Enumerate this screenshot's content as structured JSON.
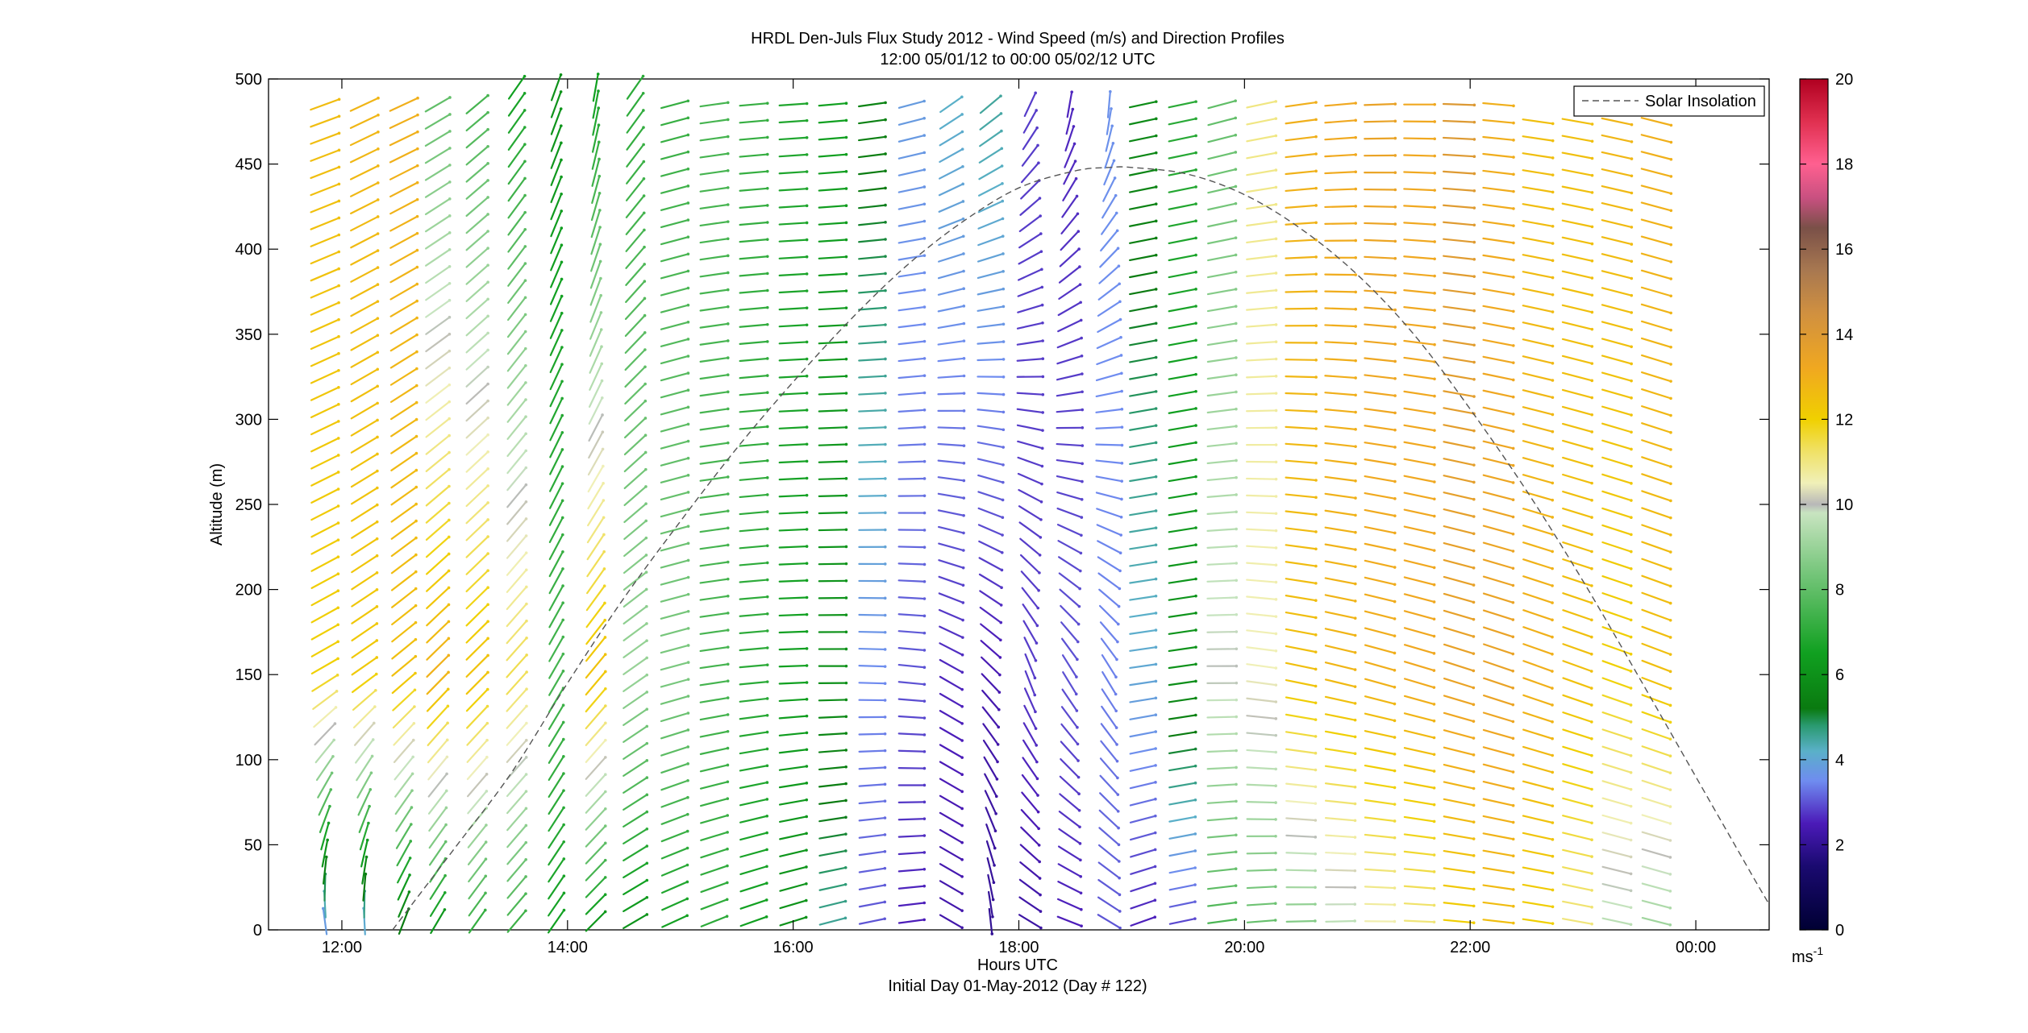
{
  "chart_data": {
    "type": "scatter",
    "title_line1": "HRDL Den-Juls Flux Study 2012 - Wind Speed (m/s) and Direction Profiles",
    "title_line2": "12:00 05/01/12 to 00:00 05/02/12  UTC",
    "xlabel": "Hours UTC",
    "xlabel_sub": "Initial Day 01-May-2012 (Day # 122)",
    "ylabel": "Altitude (m)",
    "xlim": [
      11.35,
      24.65
    ],
    "ylim": [
      0,
      500
    ],
    "x_ticks": [
      12,
      14,
      16,
      18,
      20,
      22,
      24
    ],
    "x_tick_labels": [
      "12:00",
      "14:00",
      "16:00",
      "18:00",
      "20:00",
      "22:00",
      "00:00"
    ],
    "y_ticks": [
      0,
      50,
      100,
      150,
      200,
      250,
      300,
      350,
      400,
      450,
      500
    ],
    "y_tick_labels": [
      "0",
      "50",
      "100",
      "150",
      "200",
      "250",
      "300",
      "350",
      "400",
      "450",
      "500"
    ],
    "grid": false,
    "legend": {
      "label": "Solar Insolation",
      "placement": "top-right",
      "style": "dashed",
      "color": "#555555"
    },
    "colorbar": {
      "min": 0,
      "max": 20,
      "ticks": [
        0,
        2,
        4,
        6,
        8,
        10,
        12,
        14,
        16,
        18,
        20
      ],
      "tick_labels": [
        "0",
        "2",
        "4",
        "6",
        "8",
        "10",
        "12",
        "14",
        "16",
        "18",
        "20"
      ],
      "unit_label": "ms",
      "unit_sup": "-1",
      "stops": [
        [
          0,
          "#000033"
        ],
        [
          1.5,
          "#1a0a70"
        ],
        [
          2.5,
          "#4b1ab8"
        ],
        [
          3.5,
          "#6f8cf0"
        ],
        [
          4.2,
          "#5ab0c8"
        ],
        [
          4.8,
          "#2a9a70"
        ],
        [
          5.2,
          "#0a7a10"
        ],
        [
          6.5,
          "#10a020"
        ],
        [
          8.5,
          "#7cc880"
        ],
        [
          9.8,
          "#c8e4c0"
        ],
        [
          10,
          "#b8b8b8"
        ],
        [
          10.5,
          "#f0f0b8"
        ],
        [
          11.3,
          "#f0e060"
        ],
        [
          12,
          "#f0d000"
        ],
        [
          13.2,
          "#f0a820"
        ],
        [
          14.5,
          "#d09040"
        ],
        [
          15.5,
          "#a87850"
        ],
        [
          16.5,
          "#7a5048"
        ],
        [
          17.2,
          "#c85080"
        ],
        [
          18,
          "#ff6090"
        ],
        [
          19,
          "#e03050"
        ],
        [
          20,
          "#b00020"
        ]
      ]
    },
    "altitudes": [
      5,
      15,
      25,
      35,
      45,
      55,
      65,
      75,
      85,
      95,
      105,
      115,
      125,
      135,
      145,
      155,
      165,
      175,
      185,
      195,
      205,
      215,
      225,
      235,
      245,
      255,
      265,
      275,
      285,
      295,
      305,
      315,
      325,
      335,
      345,
      355,
      365,
      375,
      385,
      395,
      405,
      415,
      425,
      435,
      445,
      455,
      465,
      475,
      485,
      495
    ],
    "profiles": [
      {
        "time": 11.85,
        "top": 485,
        "speed_low": 3.5,
        "speed_mid": 12.0,
        "speed_high": 12.6,
        "dir_low": 170,
        "dir_mid": 240,
        "dir_high": 250
      },
      {
        "time": 12.2,
        "top": 485,
        "speed_low": 3.8,
        "speed_mid": 12.2,
        "speed_high": 12.8,
        "dir_low": 175,
        "dir_mid": 235,
        "dir_high": 245
      },
      {
        "time": 12.55,
        "top": 485,
        "speed_low": 5.0,
        "speed_mid": 12.5,
        "speed_high": 13.0,
        "dir_low": 200,
        "dir_mid": 230,
        "dir_high": 245
      },
      {
        "time": 12.85,
        "top": 485,
        "speed_low": 6.0,
        "speed_mid": 13.0,
        "speed_high": 8.0,
        "dir_low": 210,
        "dir_mid": 225,
        "dir_high": 240
      },
      {
        "time": 13.2,
        "top": 485,
        "speed_low": 7.0,
        "speed_mid": 12.5,
        "speed_high": 7.5,
        "dir_low": 215,
        "dir_mid": 225,
        "dir_high": 230
      },
      {
        "time": 13.55,
        "top": 495,
        "speed_low": 7.2,
        "speed_mid": 11.5,
        "speed_high": 6.5,
        "dir_low": 220,
        "dir_mid": 222,
        "dir_high": 215
      },
      {
        "time": 13.9,
        "top": 495,
        "speed_low": 6.5,
        "speed_mid": 7.5,
        "speed_high": 6.0,
        "dir_low": 215,
        "dir_mid": 210,
        "dir_high": 200
      },
      {
        "time": 14.25,
        "top": 495,
        "speed_low": 6.0,
        "speed_mid": 12.5,
        "speed_high": 6.5,
        "dir_low": 225,
        "dir_mid": 220,
        "dir_high": 190
      },
      {
        "time": 14.6,
        "top": 495,
        "speed_low": 6.0,
        "speed_mid": 9.0,
        "speed_high": 7.0,
        "dir_low": 240,
        "dir_mid": 235,
        "dir_high": 215
      },
      {
        "time": 14.95,
        "top": 485,
        "speed_low": 6.5,
        "speed_mid": 8.5,
        "speed_high": 7.2,
        "dir_low": 245,
        "dir_mid": 255,
        "dir_high": 255
      },
      {
        "time": 15.3,
        "top": 485,
        "speed_low": 7.0,
        "speed_mid": 7.5,
        "speed_high": 7.5,
        "dir_low": 248,
        "dir_mid": 262,
        "dir_high": 262
      },
      {
        "time": 15.65,
        "top": 485,
        "speed_low": 6.5,
        "speed_mid": 7.0,
        "speed_high": 7.2,
        "dir_low": 250,
        "dir_mid": 265,
        "dir_high": 265
      },
      {
        "time": 16.0,
        "top": 485,
        "speed_low": 6.0,
        "speed_mid": 6.5,
        "speed_high": 6.8,
        "dir_low": 252,
        "dir_mid": 268,
        "dir_high": 266
      },
      {
        "time": 16.35,
        "top": 485,
        "speed_low": 4.5,
        "speed_mid": 6.0,
        "speed_high": 6.5,
        "dir_low": 255,
        "dir_mid": 270,
        "dir_high": 265
      },
      {
        "time": 16.7,
        "top": 485,
        "speed_low": 3.0,
        "speed_mid": 3.5,
        "speed_high": 5.5,
        "dir_low": 258,
        "dir_mid": 272,
        "dir_high": 262
      },
      {
        "time": 17.05,
        "top": 485,
        "speed_low": 2.5,
        "speed_mid": 3.0,
        "speed_high": 3.8,
        "dir_low": 262,
        "dir_mid": 276,
        "dir_high": 255
      },
      {
        "time": 17.4,
        "top": 485,
        "speed_low": 2.3,
        "speed_mid": 2.6,
        "speed_high": 4.2,
        "dir_low": 300,
        "dir_mid": 300,
        "dir_high": 235
      },
      {
        "time": 17.75,
        "top": 485,
        "speed_low": 2.0,
        "speed_mid": 2.4,
        "speed_high": 4.5,
        "dir_low": 355,
        "dir_mid": 315,
        "dir_high": 230
      },
      {
        "time": 18.1,
        "top": 485,
        "speed_low": 2.2,
        "speed_mid": 2.8,
        "speed_high": 2.8,
        "dir_low": 300,
        "dir_mid": 340,
        "dir_high": 205
      },
      {
        "time": 18.45,
        "top": 485,
        "speed_low": 2.5,
        "speed_mid": 3.0,
        "speed_high": 2.6,
        "dir_low": 290,
        "dir_mid": 330,
        "dir_high": 190
      },
      {
        "time": 18.8,
        "top": 485,
        "speed_low": 3.0,
        "speed_mid": 3.4,
        "speed_high": 3.6,
        "dir_low": 300,
        "dir_mid": 330,
        "dir_high": 185
      },
      {
        "time": 19.1,
        "top": 485,
        "speed_low": 2.5,
        "speed_mid": 4.0,
        "speed_high": 5.8,
        "dir_low": 250,
        "dir_mid": 262,
        "dir_high": 258
      },
      {
        "time": 19.45,
        "top": 485,
        "speed_low": 2.8,
        "speed_mid": 6.0,
        "speed_high": 7.0,
        "dir_low": 258,
        "dir_mid": 262,
        "dir_high": 258
      },
      {
        "time": 19.8,
        "top": 485,
        "speed_low": 7.5,
        "speed_mid": 10.0,
        "speed_high": 8.0,
        "dir_low": 262,
        "dir_mid": 270,
        "dir_high": 255
      },
      {
        "time": 20.15,
        "top": 485,
        "speed_low": 8.0,
        "speed_mid": 10.5,
        "speed_high": 11.0,
        "dir_low": 265,
        "dir_mid": 278,
        "dir_high": 258
      },
      {
        "time": 20.5,
        "top": 485,
        "speed_low": 8.5,
        "speed_mid": 12.5,
        "speed_high": 13.0,
        "dir_low": 268,
        "dir_mid": 282,
        "dir_high": 262
      },
      {
        "time": 20.85,
        "top": 485,
        "speed_low": 9.5,
        "speed_mid": 12.8,
        "speed_high": 13.2,
        "dir_low": 268,
        "dir_mid": 284,
        "dir_high": 265
      },
      {
        "time": 21.2,
        "top": 485,
        "speed_low": 10.5,
        "speed_mid": 13.0,
        "speed_high": 13.5,
        "dir_low": 270,
        "dir_mid": 286,
        "dir_high": 268
      },
      {
        "time": 21.55,
        "top": 485,
        "speed_low": 11.0,
        "speed_mid": 13.2,
        "speed_high": 13.2,
        "dir_low": 272,
        "dir_mid": 287,
        "dir_high": 270
      },
      {
        "time": 21.9,
        "top": 485,
        "speed_low": 12.0,
        "speed_mid": 13.5,
        "speed_high": 14.0,
        "dir_low": 275,
        "dir_mid": 288,
        "dir_high": 272
      },
      {
        "time": 22.25,
        "top": 485,
        "speed_low": 12.5,
        "speed_mid": 13.5,
        "speed_high": 13.0,
        "dir_low": 276,
        "dir_mid": 289,
        "dir_high": 275
      },
      {
        "time": 22.6,
        "top": 475,
        "speed_low": 12.0,
        "speed_mid": 13.0,
        "speed_high": 12.5,
        "dir_low": 278,
        "dir_mid": 290,
        "dir_high": 278
      },
      {
        "time": 22.95,
        "top": 475,
        "speed_low": 11.0,
        "speed_mid": 12.5,
        "speed_high": 12.5,
        "dir_low": 280,
        "dir_mid": 290,
        "dir_high": 280
      },
      {
        "time": 23.3,
        "top": 475,
        "speed_low": 9.5,
        "speed_mid": 12.0,
        "speed_high": 12.8,
        "dir_low": 282,
        "dir_mid": 290,
        "dir_high": 282
      },
      {
        "time": 23.65,
        "top": 475,
        "speed_low": 9.0,
        "speed_mid": 12.5,
        "speed_high": 13.0,
        "dir_low": 284,
        "dir_mid": 291,
        "dir_high": 284
      }
    ],
    "solar_insolation_curve": {
      "x": [
        12.45,
        13.0,
        13.5,
        14.0,
        14.5,
        15.0,
        15.5,
        16.0,
        16.5,
        17.0,
        17.5,
        18.0,
        18.5,
        18.8,
        19.0,
        19.5,
        20.0,
        20.5,
        21.0,
        21.5,
        22.0,
        22.5,
        23.0,
        23.5,
        24.0,
        24.5,
        24.65
      ],
      "y": [
        0,
        48,
        92,
        145,
        195,
        240,
        283,
        322,
        358,
        390,
        416,
        436,
        446,
        448,
        448,
        444,
        432,
        412,
        385,
        350,
        306,
        258,
        205,
        148,
        90,
        32,
        15
      ]
    }
  }
}
